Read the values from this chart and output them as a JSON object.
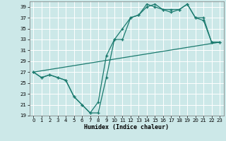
{
  "xlabel": "Humidex (Indice chaleur)",
  "bg_color": "#cce8e8",
  "grid_color": "#ffffff",
  "line_color": "#1a7a6e",
  "xlim": [
    -0.5,
    23.5
  ],
  "ylim": [
    19,
    40
  ],
  "yticks": [
    19,
    21,
    23,
    25,
    27,
    29,
    31,
    33,
    35,
    37,
    39
  ],
  "xticks": [
    0,
    1,
    2,
    3,
    4,
    5,
    6,
    7,
    8,
    9,
    10,
    11,
    12,
    13,
    14,
    15,
    16,
    17,
    18,
    19,
    20,
    21,
    22,
    23
  ],
  "line1_x": [
    0,
    1,
    2,
    3,
    4,
    5,
    6,
    7,
    8,
    9,
    10,
    11,
    12,
    13,
    14,
    15,
    16,
    17,
    18,
    19,
    20,
    21,
    22,
    23
  ],
  "line1_y": [
    27,
    26,
    26.5,
    26,
    25.5,
    22.5,
    21,
    19.5,
    19.5,
    26,
    33,
    33,
    37,
    37.5,
    39.5,
    39,
    38.5,
    38.5,
    38.5,
    39.5,
    37,
    37,
    32.5,
    32.5
  ],
  "line2_x": [
    0,
    1,
    2,
    3,
    4,
    5,
    6,
    7,
    8,
    9,
    10,
    11,
    12,
    13,
    14,
    15,
    16,
    17,
    18,
    19,
    20,
    21,
    22,
    23
  ],
  "line2_y": [
    27,
    26,
    26.5,
    26,
    25.5,
    22.5,
    21,
    19.5,
    21.5,
    30,
    33,
    35,
    37,
    37.5,
    39,
    39.5,
    38.5,
    38,
    38.5,
    39.5,
    37,
    36.5,
    32.5,
    32.5
  ],
  "line3_x": [
    0,
    23
  ],
  "line3_y": [
    27,
    32.5
  ]
}
